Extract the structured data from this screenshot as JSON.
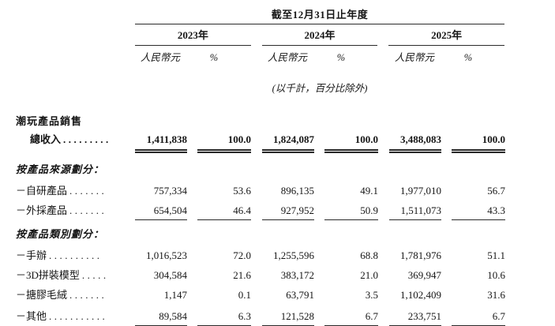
{
  "page": {
    "background_color": "#ffffff",
    "text_color": "#161616",
    "rule_color": "#2a2a2a"
  },
  "table": {
    "period_header": "截至12月31日止年度",
    "year_groups": [
      {
        "year": "2023年",
        "currency_label": "人民幣元",
        "percent_label": "%"
      },
      {
        "year": "2024年",
        "currency_label": "人民幣元",
        "percent_label": "%"
      },
      {
        "year": "2025年",
        "currency_label": "人民幣元",
        "percent_label": "%"
      }
    ],
    "note": "(以千計，百分比除外)",
    "section_title": "潮玩產品銷售",
    "rows": [
      {
        "label": "總收入",
        "dots": ".........",
        "values": [
          "1,411,838",
          "100.0",
          "1,824,087",
          "100.0",
          "3,488,083",
          "100.0"
        ]
      },
      {
        "label": "按產品來源劃分："
      },
      {
        "label": "－自研產品",
        "dots": ".......",
        "values": [
          "757,334",
          "53.6",
          "896,135",
          "49.1",
          "1,977,010",
          "56.7"
        ]
      },
      {
        "label": "－外採產品",
        "dots": ".......",
        "values": [
          "654,504",
          "46.4",
          "927,952",
          "50.9",
          "1,511,073",
          "43.3"
        ]
      },
      {
        "label": "按產品類別劃分："
      },
      {
        "label": "－手辦",
        "dots": "..........",
        "values": [
          "1,016,523",
          "72.0",
          "1,255,596",
          "68.8",
          "1,781,976",
          "51.1"
        ]
      },
      {
        "label": "－3D拼裝模型",
        "dots": ".....",
        "values": [
          "304,584",
          "21.6",
          "383,172",
          "21.0",
          "369,947",
          "10.6"
        ]
      },
      {
        "label": "－搪膠毛絨",
        "dots": ".......",
        "values": [
          "1,147",
          "0.1",
          "63,791",
          "3.5",
          "1,102,409",
          "31.6"
        ]
      },
      {
        "label": "－其他",
        "dots": "...........",
        "values": [
          "89,584",
          "6.3",
          "121,528",
          "6.7",
          "233,751",
          "6.7"
        ]
      }
    ]
  }
}
